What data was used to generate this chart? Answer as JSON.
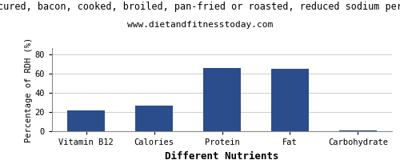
{
  "title_line1": "cured, bacon, cooked, broiled, pan-fried or roasted, reduced sodium per",
  "title_line2": "www.dietandfitnesstoday.com",
  "categories": [
    "Vitamin B12",
    "Calories",
    "Protein",
    "Fat",
    "Carbohydrate"
  ],
  "values": [
    22,
    27,
    66,
    65,
    0.5
  ],
  "bar_color": "#2b4d8c",
  "xlabel": "Different Nutrients",
  "ylabel": "Percentage of RDH (%)",
  "ylim": [
    0,
    87
  ],
  "yticks": [
    0,
    20,
    40,
    60,
    80
  ],
  "title_fontsize": 8.5,
  "subtitle_fontsize": 8,
  "xlabel_fontsize": 9,
  "ylabel_fontsize": 7.5,
  "tick_fontsize": 7.5,
  "background_color": "#ffffff",
  "grid_color": "#cccccc"
}
